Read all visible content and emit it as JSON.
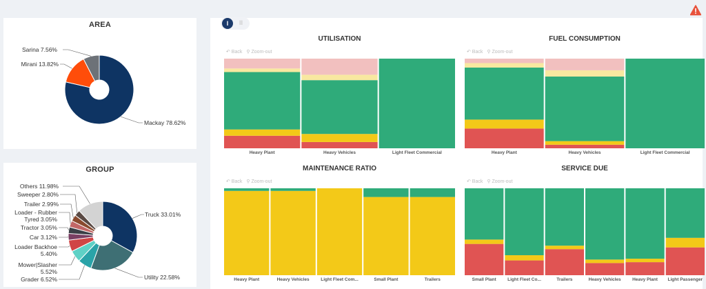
{
  "area": {
    "title": "AREA",
    "slices": [
      {
        "label": "Mackay 78.62%",
        "value": 78.62,
        "color": "#0e3463"
      },
      {
        "label": "Mirani 13.82%",
        "value": 13.82,
        "color": "#ff4d0a"
      },
      {
        "label": "Sarina 7.56%",
        "value": 7.56,
        "color": "#6d7278"
      }
    ]
  },
  "group": {
    "title": "GROUP",
    "slices": [
      {
        "label": "Truck 33.01%",
        "value": 33.01,
        "color": "#0e3463"
      },
      {
        "label": "Utility 22.58%",
        "value": 22.58,
        "color": "#3e6f74"
      },
      {
        "label": "Grader 6.52%",
        "value": 6.52,
        "color": "#2aa3a8"
      },
      {
        "label": "Mower|Slasher 5.52%",
        "value": 5.52,
        "color": "#5fd1c6"
      },
      {
        "label": "Loader Backhoe 5.40%",
        "value": 5.4,
        "color": "#d04545"
      },
      {
        "label": "Car 3.12%",
        "value": 3.12,
        "color": "#7a3f63"
      },
      {
        "label": "Tractor 3.05%",
        "value": 3.05,
        "color": "#3a3f46"
      },
      {
        "label": "Loader - Rubber Tyred 3.05%",
        "value": 3.05,
        "color": "#c26767"
      },
      {
        "label": "Trailer 2.99%",
        "value": 2.99,
        "color": "#8a4a2e"
      },
      {
        "label": "Sweeper 2.80%",
        "value": 2.8,
        "color": "#5a4a44"
      },
      {
        "label": "Others 11.98%",
        "value": 11.98,
        "color": "#d3d3d3"
      }
    ]
  },
  "toolbar": {
    "back_label": "Back",
    "zoom_label": "Zoom-out",
    "toggle_on": "I",
    "toggle_off": "II"
  },
  "colors": {
    "red": "#e05453",
    "pink": "#f2c0bf",
    "lightyellow": "#f8e8a0",
    "yellow": "#f3c918",
    "green": "#2fab7a"
  },
  "charts": [
    {
      "title": "UTILISATION",
      "categories": [
        "Heavy Plant",
        "Heavy Vehicles",
        "Light Fleet Commercial"
      ],
      "columns": [
        {
          "width": 1,
          "segments": [
            [
              "red",
              0.14
            ],
            [
              "yellow",
              0.07
            ],
            [
              "green",
              0.64
            ],
            [
              "lightyellow",
              0.04
            ],
            [
              "pink",
              0.11
            ]
          ]
        },
        {
          "width": 1,
          "segments": [
            [
              "red",
              0.07
            ],
            [
              "yellow",
              0.09
            ],
            [
              "green",
              0.6
            ],
            [
              "lightyellow",
              0.06
            ],
            [
              "pink",
              0.18
            ]
          ]
        },
        {
          "width": 1,
          "segments": [
            [
              "green",
              1.0
            ]
          ]
        }
      ]
    },
    {
      "title": "FUEL CONSUMPTION",
      "categories": [
        "Heavy Plant",
        "Heavy Vehicles",
        "Light Fleet Commercial"
      ],
      "columns": [
        {
          "width": 1,
          "segments": [
            [
              "red",
              0.22
            ],
            [
              "yellow",
              0.1
            ],
            [
              "green",
              0.58
            ],
            [
              "lightyellow",
              0.05
            ],
            [
              "pink",
              0.05
            ]
          ]
        },
        {
          "width": 1,
          "segments": [
            [
              "red",
              0.04
            ],
            [
              "yellow",
              0.04
            ],
            [
              "green",
              0.72
            ],
            [
              "lightyellow",
              0.07
            ],
            [
              "pink",
              0.13
            ]
          ]
        },
        {
          "width": 1,
          "segments": [
            [
              "green",
              1.0
            ]
          ]
        }
      ]
    },
    {
      "title": "MAINTENANCE RATIO",
      "categories": [
        "Heavy Plant",
        "Heavy Vehicles",
        "Light Fleet Com...",
        "Small Plant",
        "Trailers"
      ],
      "columns": [
        {
          "width": 1,
          "segments": [
            [
              "yellow",
              0.97
            ],
            [
              "green",
              0.03
            ]
          ]
        },
        {
          "width": 1,
          "segments": [
            [
              "yellow",
              0.97
            ],
            [
              "green",
              0.03
            ]
          ]
        },
        {
          "width": 1,
          "segments": [
            [
              "yellow",
              1.0
            ]
          ]
        },
        {
          "width": 1,
          "segments": [
            [
              "yellow",
              0.9
            ],
            [
              "green",
              0.1
            ]
          ]
        },
        {
          "width": 1,
          "segments": [
            [
              "yellow",
              0.9
            ],
            [
              "green",
              0.1
            ]
          ]
        }
      ]
    },
    {
      "title": "SERVICE DUE",
      "categories": [
        "Small Plant",
        "Light Fleet Co...",
        "Trailers",
        "Heavy Vehicles",
        "Heavy Plant",
        "Light Passenger"
      ],
      "columns": [
        {
          "width": 1,
          "segments": [
            [
              "red",
              0.36
            ],
            [
              "yellow",
              0.05
            ],
            [
              "green",
              0.59
            ]
          ]
        },
        {
          "width": 1,
          "segments": [
            [
              "red",
              0.17
            ],
            [
              "yellow",
              0.06
            ],
            [
              "green",
              0.77
            ]
          ]
        },
        {
          "width": 1,
          "segments": [
            [
              "red",
              0.3
            ],
            [
              "yellow",
              0.04
            ],
            [
              "green",
              0.66
            ]
          ]
        },
        {
          "width": 1,
          "segments": [
            [
              "red",
              0.14
            ],
            [
              "yellow",
              0.04
            ],
            [
              "green",
              0.82
            ]
          ]
        },
        {
          "width": 1,
          "segments": [
            [
              "red",
              0.15
            ],
            [
              "yellow",
              0.04
            ],
            [
              "green",
              0.81
            ]
          ]
        },
        {
          "width": 1,
          "segments": [
            [
              "red",
              0.32
            ],
            [
              "yellow",
              0.11
            ],
            [
              "green",
              0.57
            ]
          ]
        }
      ]
    }
  ]
}
